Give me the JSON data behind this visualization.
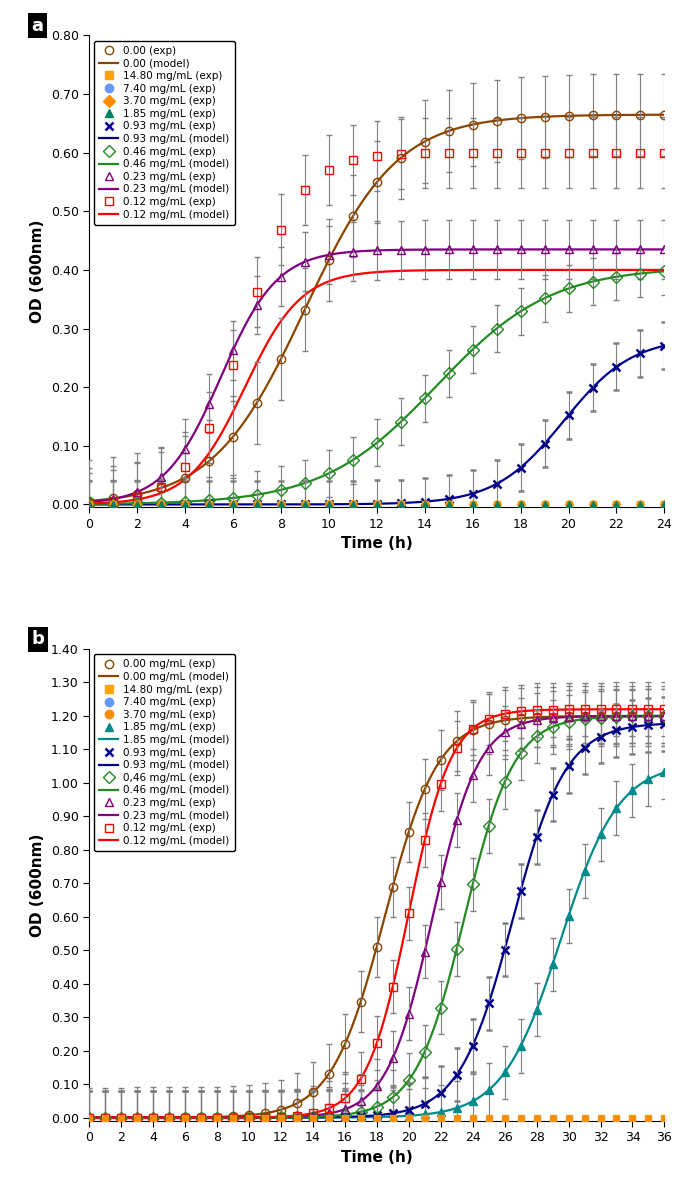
{
  "panel_a": {
    "title": "a",
    "xlabel": "Time (h)",
    "ylabel": "OD (600nm)",
    "xlim": [
      0,
      24
    ],
    "ylim": [
      -0.005,
      0.8
    ],
    "yticks": [
      0.0,
      0.1,
      0.2,
      0.3,
      0.4,
      0.5,
      0.6,
      0.7,
      0.8
    ],
    "xticks": [
      0,
      2,
      4,
      6,
      8,
      10,
      12,
      14,
      16,
      18,
      20,
      22,
      24
    ],
    "series": [
      {
        "label": "0.00 (exp)",
        "color": "#8B4500",
        "marker": "o",
        "filled": false,
        "model": false,
        "OD_max": 0.665,
        "t_mid": 9.0,
        "k": 0.52,
        "error": 0.07
      },
      {
        "label": "0.00 (model)",
        "color": "#8B4500",
        "marker": null,
        "filled": null,
        "model": true,
        "OD_max": 0.665,
        "t_mid": 9.0,
        "k": 0.52
      },
      {
        "label": "14.80 mg/mL (exp)",
        "color": "#FFA500",
        "marker": "s",
        "filled": true,
        "model": false,
        "OD_max": 0.0,
        "t_mid": 12,
        "k": 1.0,
        "error": 0.0
      },
      {
        "label": "7.40 mg/mL (exp)",
        "color": "#6699FF",
        "marker": "o",
        "filled": true,
        "model": false,
        "OD_max": 0.0,
        "t_mid": 12,
        "k": 1.0,
        "error": 0.0
      },
      {
        "label": "3.70 mg/mL (exp)",
        "color": "#FF8C00",
        "marker": "D",
        "filled": true,
        "model": false,
        "OD_max": 0.0,
        "t_mid": 12,
        "k": 1.0,
        "error": 0.0
      },
      {
        "label": "1.85 mg/mL (exp)",
        "color": "#008060",
        "marker": "^",
        "filled": true,
        "model": false,
        "OD_max": 0.0,
        "t_mid": 12,
        "k": 1.0,
        "error": 0.0
      },
      {
        "label": "0.93 mg/mL (exp)",
        "color": "#00008B",
        "marker": "x",
        "filled": true,
        "model": false,
        "OD_max": 0.285,
        "t_mid": 19.8,
        "k": 0.7,
        "error": 0.04
      },
      {
        "label": "0.93 mg/mL (model)",
        "color": "#00008B",
        "marker": null,
        "filled": null,
        "model": true,
        "OD_max": 0.285,
        "t_mid": 19.8,
        "k": 0.7
      },
      {
        "label": "0.46 mg/mL (exp)",
        "color": "#228B22",
        "marker": "D",
        "filled": false,
        "model": false,
        "OD_max": 0.405,
        "t_mid": 14.5,
        "k": 0.42,
        "error": 0.04
      },
      {
        "label": "0.46 mg/mL (model)",
        "color": "#228B22",
        "marker": null,
        "filled": null,
        "model": true,
        "OD_max": 0.405,
        "t_mid": 14.5,
        "k": 0.42
      },
      {
        "label": "0.23 mg/mL (exp)",
        "color": "#800080",
        "marker": "^",
        "filled": false,
        "model": false,
        "OD_max": 0.435,
        "t_mid": 5.5,
        "k": 0.85,
        "error": 0.05
      },
      {
        "label": "0.23 mg/mL (model)",
        "color": "#800080",
        "marker": null,
        "filled": null,
        "model": true,
        "OD_max": 0.435,
        "t_mid": 5.5,
        "k": 0.85
      },
      {
        "label": "0.12 mg/mL (exp)",
        "color": "#FF0000",
        "marker": "s",
        "filled": false,
        "model": false,
        "OD_max": 0.6,
        "t_mid": 6.5,
        "k": 0.85,
        "error": 0.06
      },
      {
        "label": "0.12 mg/mL (model)",
        "color": "#FF0000",
        "marker": null,
        "filled": null,
        "model": true,
        "OD_max": 0.4,
        "t_mid": 6.5,
        "k": 0.85
      }
    ]
  },
  "panel_b": {
    "title": "b",
    "xlabel": "Time (h)",
    "ylabel": "OD (600nm)",
    "xlim": [
      0,
      36
    ],
    "ylim": [
      -0.01,
      1.4
    ],
    "yticks": [
      0.0,
      0.1,
      0.2,
      0.3,
      0.4,
      0.5,
      0.6,
      0.7,
      0.8,
      0.9,
      1.0,
      1.1,
      1.2,
      1.3,
      1.4
    ],
    "xticks": [
      0,
      2,
      4,
      6,
      8,
      10,
      12,
      14,
      16,
      18,
      20,
      22,
      24,
      26,
      28,
      30,
      32,
      34,
      36
    ],
    "series": [
      {
        "label": "0.00 mg/mL (exp)",
        "color": "#8B4500",
        "marker": "o",
        "filled": false,
        "model": false,
        "OD_max": 1.2,
        "t_mid": 18.5,
        "k": 0.6,
        "error": 0.09
      },
      {
        "label": "0.00 mg/mL (model)",
        "color": "#8B4500",
        "marker": null,
        "filled": null,
        "model": true,
        "OD_max": 1.2,
        "t_mid": 18.5,
        "k": 0.6
      },
      {
        "label": "14.80 mg/mL (exp)",
        "color": "#FFA500",
        "marker": "s",
        "filled": true,
        "model": false,
        "OD_max": 0.0,
        "t_mid": 18,
        "k": 1.0,
        "error": 0.0
      },
      {
        "label": "7.40 mg/mL (exp)",
        "color": "#6699FF",
        "marker": "o",
        "filled": true,
        "model": false,
        "OD_max": 0.0,
        "t_mid": 18,
        "k": 1.0,
        "error": 0.0
      },
      {
        "label": "3.70 mg/mL (exp)",
        "color": "#FF8C00",
        "marker": "o",
        "filled": true,
        "model": false,
        "OD_max": 0.0,
        "t_mid": 18,
        "k": 1.0,
        "error": 0.0
      },
      {
        "label": "1.85 mg/mL (exp)",
        "color": "#008B8B",
        "marker": "^",
        "filled": true,
        "model": false,
        "OD_max": 1.06,
        "t_mid": 29.5,
        "k": 0.55,
        "error": 0.08
      },
      {
        "label": "1.85 mg/mL (model)",
        "color": "#008B8B",
        "marker": null,
        "filled": null,
        "model": true,
        "OD_max": 1.06,
        "t_mid": 29.5,
        "k": 0.55
      },
      {
        "label": "0.93 mg/mL (exp)",
        "color": "#00008B",
        "marker": "x",
        "filled": true,
        "model": false,
        "OD_max": 1.18,
        "t_mid": 26.5,
        "k": 0.6,
        "error": 0.08
      },
      {
        "label": "0.93 mg/mL (model)",
        "color": "#00008B",
        "marker": null,
        "filled": null,
        "model": true,
        "OD_max": 1.18,
        "t_mid": 26.5,
        "k": 0.6
      },
      {
        "label": "0,46 mg/mL (exp)",
        "color": "#228B22",
        "marker": "D",
        "filled": false,
        "model": false,
        "OD_max": 1.2,
        "t_mid": 23.5,
        "k": 0.65,
        "error": 0.08
      },
      {
        "label": "0.46 mg/mL (model)",
        "color": "#228B22",
        "marker": null,
        "filled": null,
        "model": true,
        "OD_max": 1.2,
        "t_mid": 23.5,
        "k": 0.65
      },
      {
        "label": "0.23 mg/mL (exp)",
        "color": "#800080",
        "marker": "^",
        "filled": false,
        "model": false,
        "OD_max": 1.2,
        "t_mid": 21.5,
        "k": 0.7,
        "error": 0.08
      },
      {
        "label": "0.23 mg/mL (model)",
        "color": "#800080",
        "marker": null,
        "filled": null,
        "model": true,
        "OD_max": 1.2,
        "t_mid": 21.5,
        "k": 0.7
      },
      {
        "label": "0.12 mg/mL (exp)",
        "color": "#FF0000",
        "marker": "s",
        "filled": false,
        "model": false,
        "OD_max": 1.22,
        "t_mid": 20.0,
        "k": 0.75,
        "error": 0.08
      },
      {
        "label": "0.12 mg/mL (model)",
        "color": "#FF0000",
        "marker": null,
        "filled": null,
        "model": true,
        "OD_max": 1.22,
        "t_mid": 20.0,
        "k": 0.75
      }
    ]
  }
}
